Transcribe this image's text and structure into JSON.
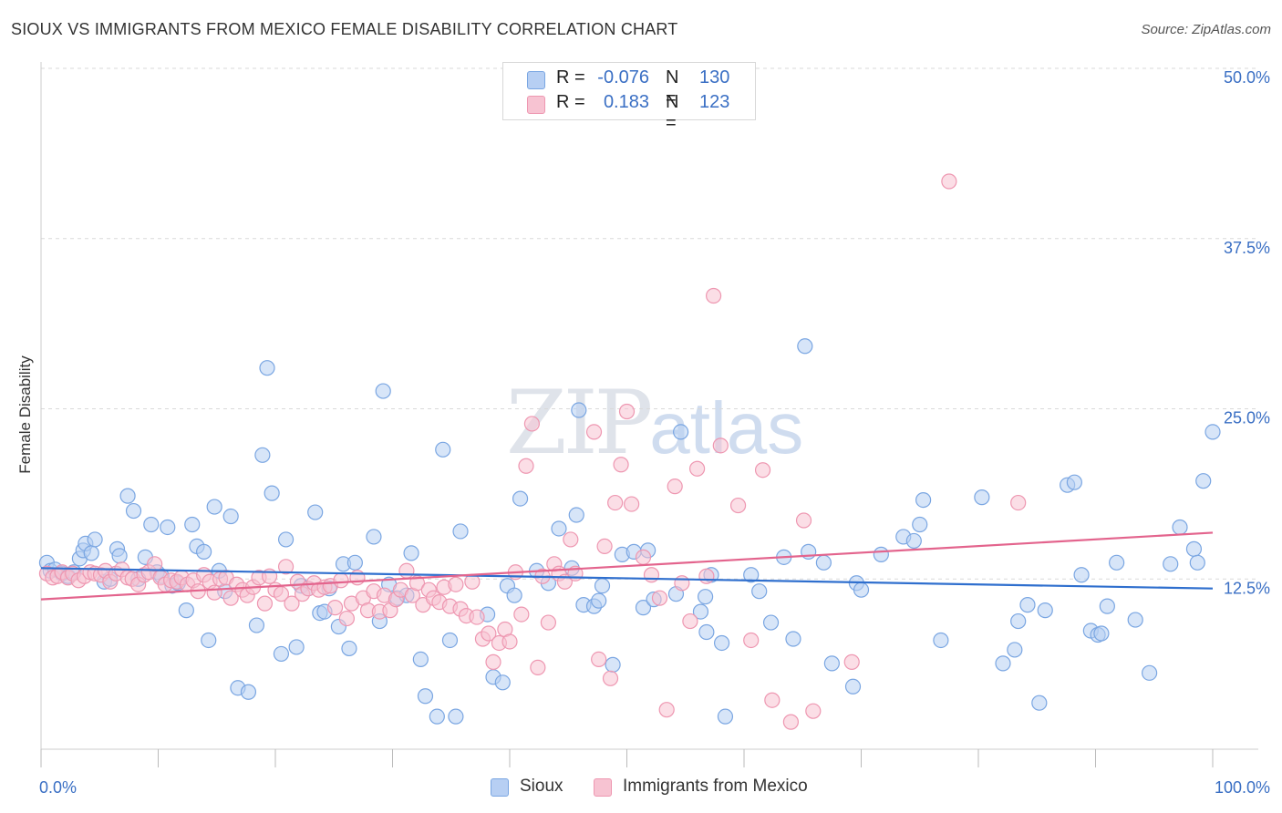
{
  "header": {
    "title": "SIOUX VS IMMIGRANTS FROM MEXICO FEMALE DISABILITY CORRELATION CHART",
    "source": "Source: ZipAtlas.com"
  },
  "watermark": {
    "part1": "ZIP",
    "part2": "atlas"
  },
  "legend_top": {
    "rows": [
      {
        "r_label": "R =",
        "r_value": "-0.076",
        "n_label": "N =",
        "n_value": "130"
      },
      {
        "r_label": "R =",
        "r_value": "0.183",
        "n_label": "N =",
        "n_value": "123"
      }
    ]
  },
  "legend_bottom": {
    "items": [
      {
        "label": "Sioux"
      },
      {
        "label": "Immigrants from Mexico"
      }
    ]
  },
  "colors": {
    "sioux_fill": "#b7cff3",
    "sioux_stroke": "#7aa6e2",
    "sioux_line": "#2f6fce",
    "mexico_fill": "#f7c3d2",
    "mexico_stroke": "#ee97b1",
    "mexico_line": "#e3648d",
    "tick_label": "#3a6fc4",
    "grid": "#d9d9d9"
  },
  "chart_data": {
    "type": "scatter",
    "title": "SIOUX VS IMMIGRANTS FROM MEXICO FEMALE DISABILITY CORRELATION CHART",
    "xlabel": "",
    "ylabel": "Female Disability",
    "xlim": [
      0,
      100
    ],
    "ylim": [
      0,
      50
    ],
    "x_tick_labels": [
      "0.0%",
      "100.0%"
    ],
    "y_ticks": [
      12.5,
      25.0,
      37.5,
      50.0
    ],
    "y_tick_labels": [
      "12.5%",
      "25.0%",
      "37.5%",
      "50.0%"
    ],
    "grid": true,
    "legend_position": "top-center",
    "series": [
      {
        "name": "Sioux",
        "r": -0.076,
        "n": 130,
        "trend": [
          [
            0,
            13.3
          ],
          [
            100,
            11.8
          ]
        ],
        "points": [
          [
            0.5,
            13.7
          ],
          [
            0.8,
            13.1
          ],
          [
            1.2,
            13.2
          ],
          [
            1.8,
            12.9
          ],
          [
            2.3,
            12.7
          ],
          [
            2.8,
            13.0
          ],
          [
            3.3,
            14.0
          ],
          [
            3.6,
            14.6
          ],
          [
            3.8,
            15.1
          ],
          [
            4.3,
            14.4
          ],
          [
            4.6,
            15.4
          ],
          [
            5.4,
            12.3
          ],
          [
            5.9,
            12.5
          ],
          [
            6.5,
            14.7
          ],
          [
            6.7,
            14.2
          ],
          [
            7.4,
            18.6
          ],
          [
            7.9,
            17.5
          ],
          [
            8.3,
            12.5
          ],
          [
            8.9,
            14.1
          ],
          [
            9.4,
            16.5
          ],
          [
            9.9,
            13.0
          ],
          [
            10.3,
            12.7
          ],
          [
            10.8,
            16.3
          ],
          [
            11.2,
            12.0
          ],
          [
            11.7,
            12.2
          ],
          [
            12.4,
            10.2
          ],
          [
            12.9,
            16.5
          ],
          [
            13.3,
            14.9
          ],
          [
            13.9,
            14.5
          ],
          [
            14.3,
            8.0
          ],
          [
            14.8,
            17.8
          ],
          [
            15.2,
            13.1
          ],
          [
            15.7,
            11.6
          ],
          [
            16.2,
            17.1
          ],
          [
            16.8,
            4.5
          ],
          [
            17.7,
            4.2
          ],
          [
            18.4,
            9.1
          ],
          [
            18.9,
            21.6
          ],
          [
            19.3,
            28.0
          ],
          [
            19.7,
            18.8
          ],
          [
            20.5,
            7.0
          ],
          [
            20.9,
            15.4
          ],
          [
            21.8,
            7.5
          ],
          [
            22.2,
            12.0
          ],
          [
            22.8,
            11.8
          ],
          [
            23.4,
            17.4
          ],
          [
            23.8,
            10.0
          ],
          [
            24.2,
            10.1
          ],
          [
            24.6,
            11.8
          ],
          [
            25.4,
            9.0
          ],
          [
            25.8,
            13.6
          ],
          [
            26.3,
            7.4
          ],
          [
            26.8,
            13.7
          ],
          [
            28.4,
            15.6
          ],
          [
            28.9,
            9.4
          ],
          [
            29.2,
            26.3
          ],
          [
            29.7,
            12.1
          ],
          [
            30.4,
            11.1
          ],
          [
            31.2,
            11.3
          ],
          [
            31.6,
            14.4
          ],
          [
            32.4,
            6.6
          ],
          [
            32.8,
            3.9
          ],
          [
            33.8,
            2.4
          ],
          [
            34.3,
            22.0
          ],
          [
            34.9,
            8.0
          ],
          [
            35.4,
            2.4
          ],
          [
            35.8,
            16.0
          ],
          [
            38.1,
            9.9
          ],
          [
            38.6,
            5.3
          ],
          [
            39.4,
            4.9
          ],
          [
            39.8,
            12.0
          ],
          [
            40.4,
            11.3
          ],
          [
            40.9,
            18.4
          ],
          [
            42.3,
            13.1
          ],
          [
            43.3,
            12.2
          ],
          [
            44.2,
            16.2
          ],
          [
            45.3,
            13.3
          ],
          [
            45.7,
            17.2
          ],
          [
            45.9,
            24.9
          ],
          [
            46.3,
            10.6
          ],
          [
            47.2,
            10.5
          ],
          [
            47.6,
            10.9
          ],
          [
            47.9,
            12.0
          ],
          [
            48.8,
            6.2
          ],
          [
            49.6,
            14.3
          ],
          [
            50.6,
            14.5
          ],
          [
            51.4,
            10.4
          ],
          [
            51.8,
            14.6
          ],
          [
            52.3,
            11.0
          ],
          [
            54.2,
            11.4
          ],
          [
            54.6,
            23.3
          ],
          [
            56.7,
            11.2
          ],
          [
            56.3,
            10.1
          ],
          [
            56.8,
            8.6
          ],
          [
            57.2,
            12.8
          ],
          [
            58.1,
            7.8
          ],
          [
            58.4,
            2.4
          ],
          [
            60.6,
            12.8
          ],
          [
            61.3,
            11.6
          ],
          [
            62.3,
            9.3
          ],
          [
            63.4,
            14.1
          ],
          [
            64.2,
            8.1
          ],
          [
            65.2,
            29.6
          ],
          [
            65.5,
            14.5
          ],
          [
            66.8,
            13.7
          ],
          [
            67.5,
            6.3
          ],
          [
            69.3,
            4.6
          ],
          [
            69.6,
            12.2
          ],
          [
            70.0,
            11.7
          ],
          [
            71.7,
            14.3
          ],
          [
            73.6,
            15.6
          ],
          [
            74.5,
            15.3
          ],
          [
            75.0,
            16.5
          ],
          [
            75.3,
            18.3
          ],
          [
            76.8,
            8.0
          ],
          [
            80.3,
            18.5
          ],
          [
            82.1,
            6.3
          ],
          [
            83.1,
            7.3
          ],
          [
            83.4,
            9.4
          ],
          [
            84.2,
            10.6
          ],
          [
            85.2,
            3.4
          ],
          [
            85.7,
            10.2
          ],
          [
            87.6,
            19.4
          ],
          [
            88.2,
            19.6
          ],
          [
            88.8,
            12.8
          ],
          [
            89.6,
            8.7
          ],
          [
            90.2,
            8.4
          ],
          [
            90.5,
            8.5
          ],
          [
            91.0,
            10.5
          ],
          [
            91.8,
            13.7
          ],
          [
            93.4,
            9.5
          ],
          [
            94.6,
            5.6
          ],
          [
            96.4,
            13.6
          ],
          [
            97.2,
            16.3
          ],
          [
            98.4,
            14.7
          ],
          [
            98.7,
            13.7
          ],
          [
            99.2,
            19.7
          ],
          [
            100.0,
            23.3
          ]
        ]
      },
      {
        "name": "Immigrants from Mexico",
        "r": 0.183,
        "n": 123,
        "trend": [
          [
            0,
            11.0
          ],
          [
            100,
            15.9
          ]
        ],
        "points": [
          [
            0.5,
            12.9
          ],
          [
            1.0,
            12.6
          ],
          [
            1.4,
            12.7
          ],
          [
            1.8,
            13.0
          ],
          [
            2.3,
            12.6
          ],
          [
            2.7,
            12.9
          ],
          [
            3.2,
            12.4
          ],
          [
            3.7,
            12.7
          ],
          [
            4.2,
            13.0
          ],
          [
            4.6,
            12.9
          ],
          [
            5.1,
            12.8
          ],
          [
            5.5,
            13.1
          ],
          [
            5.9,
            12.3
          ],
          [
            6.4,
            12.9
          ],
          [
            6.9,
            13.2
          ],
          [
            7.4,
            12.6
          ],
          [
            7.8,
            12.5
          ],
          [
            8.3,
            12.1
          ],
          [
            8.8,
            12.8
          ],
          [
            9.2,
            13.0
          ],
          [
            9.7,
            13.6
          ],
          [
            10.2,
            12.6
          ],
          [
            10.6,
            12.1
          ],
          [
            11.1,
            12.4
          ],
          [
            11.6,
            12.3
          ],
          [
            12.0,
            12.6
          ],
          [
            12.5,
            12.1
          ],
          [
            13.0,
            12.4
          ],
          [
            13.4,
            11.6
          ],
          [
            13.9,
            12.8
          ],
          [
            14.4,
            12.3
          ],
          [
            14.8,
            11.5
          ],
          [
            15.3,
            12.5
          ],
          [
            15.8,
            12.6
          ],
          [
            16.2,
            11.1
          ],
          [
            16.7,
            12.1
          ],
          [
            17.2,
            11.7
          ],
          [
            17.6,
            11.3
          ],
          [
            18.1,
            11.9
          ],
          [
            18.6,
            12.6
          ],
          [
            19.1,
            10.7
          ],
          [
            19.5,
            12.7
          ],
          [
            20.0,
            11.7
          ],
          [
            20.5,
            11.4
          ],
          [
            20.9,
            13.4
          ],
          [
            21.4,
            10.7
          ],
          [
            21.9,
            12.3
          ],
          [
            22.3,
            11.4
          ],
          [
            22.8,
            11.8
          ],
          [
            23.3,
            12.2
          ],
          [
            23.7,
            11.7
          ],
          [
            24.2,
            11.9
          ],
          [
            24.7,
            12.0
          ],
          [
            25.1,
            10.4
          ],
          [
            25.6,
            12.4
          ],
          [
            26.1,
            9.6
          ],
          [
            26.5,
            10.7
          ],
          [
            27.0,
            12.6
          ],
          [
            27.5,
            11.1
          ],
          [
            27.9,
            10.2
          ],
          [
            28.4,
            11.6
          ],
          [
            28.9,
            10.1
          ],
          [
            29.3,
            11.3
          ],
          [
            29.8,
            10.2
          ],
          [
            30.3,
            11.0
          ],
          [
            30.7,
            11.7
          ],
          [
            31.2,
            13.1
          ],
          [
            31.7,
            11.3
          ],
          [
            32.1,
            12.2
          ],
          [
            32.6,
            10.6
          ],
          [
            33.1,
            11.7
          ],
          [
            33.5,
            11.1
          ],
          [
            34.0,
            10.8
          ],
          [
            34.4,
            11.9
          ],
          [
            34.9,
            10.5
          ],
          [
            35.4,
            12.1
          ],
          [
            35.8,
            10.3
          ],
          [
            36.3,
            9.8
          ],
          [
            36.8,
            12.3
          ],
          [
            37.2,
            9.7
          ],
          [
            37.7,
            8.1
          ],
          [
            38.2,
            8.5
          ],
          [
            38.6,
            6.4
          ],
          [
            39.1,
            7.8
          ],
          [
            39.6,
            8.8
          ],
          [
            40.0,
            7.9
          ],
          [
            40.5,
            13.0
          ],
          [
            41.0,
            9.9
          ],
          [
            41.4,
            20.8
          ],
          [
            41.9,
            23.9
          ],
          [
            42.4,
            6.0
          ],
          [
            42.8,
            12.7
          ],
          [
            43.3,
            9.3
          ],
          [
            43.8,
            13.6
          ],
          [
            44.2,
            12.9
          ],
          [
            44.7,
            12.3
          ],
          [
            45.2,
            15.4
          ],
          [
            45.6,
            12.9
          ],
          [
            47.2,
            23.3
          ],
          [
            47.6,
            6.6
          ],
          [
            48.1,
            14.9
          ],
          [
            48.6,
            5.2
          ],
          [
            49.0,
            18.1
          ],
          [
            49.5,
            20.9
          ],
          [
            50.0,
            24.8
          ],
          [
            50.4,
            18.0
          ],
          [
            51.4,
            14.1
          ],
          [
            52.1,
            12.8
          ],
          [
            52.8,
            11.1
          ],
          [
            53.4,
            2.9
          ],
          [
            54.1,
            19.3
          ],
          [
            54.7,
            12.2
          ],
          [
            55.4,
            9.4
          ],
          [
            56.0,
            20.6
          ],
          [
            56.8,
            12.7
          ],
          [
            57.4,
            33.3
          ],
          [
            58.0,
            22.3
          ],
          [
            59.5,
            17.9
          ],
          [
            60.6,
            8.0
          ],
          [
            61.6,
            20.5
          ],
          [
            62.4,
            3.6
          ],
          [
            64.0,
            2.0
          ],
          [
            65.1,
            16.8
          ],
          [
            65.9,
            2.8
          ],
          [
            69.2,
            6.4
          ],
          [
            77.5,
            41.7
          ],
          [
            83.4,
            18.1
          ]
        ]
      }
    ]
  }
}
